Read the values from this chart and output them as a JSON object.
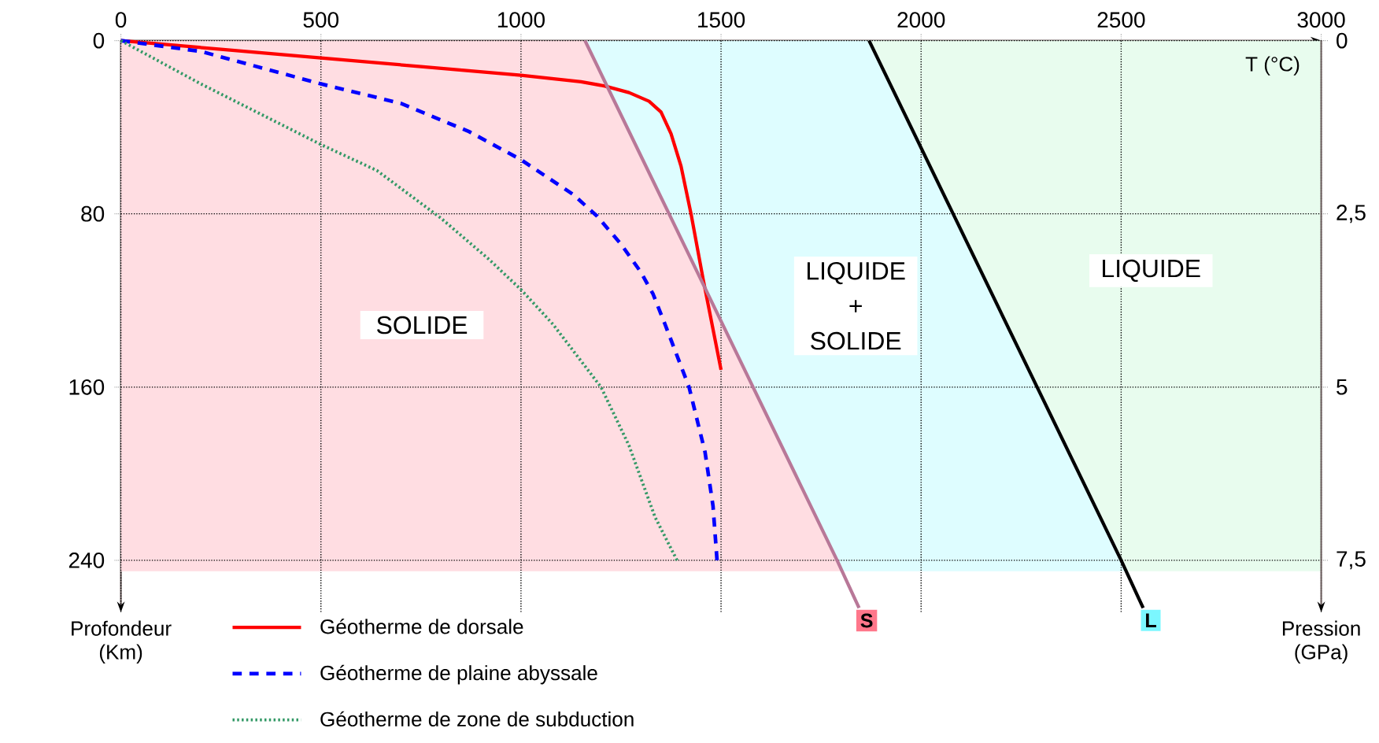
{
  "chart_data": {
    "type": "line",
    "xlabel": "T (°C)",
    "ylabel": "Profondeur (Km)",
    "y2label": "Pression (GPa)",
    "xlim": [
      0,
      3000
    ],
    "xticks": [
      0,
      500,
      1000,
      1500,
      2000,
      2500,
      3000
    ],
    "ylim": [
      264,
      0
    ],
    "yticks": [
      0,
      80,
      160,
      240
    ],
    "y2lim": [
      8.25,
      0
    ],
    "y2ticks": [
      0,
      {
        "value": 2.5,
        "label": "2,5"
      },
      5,
      {
        "value": 7.5,
        "label": "7,5"
      }
    ],
    "grid": true,
    "legend": "bottom left",
    "series": [
      {
        "name": "Géotherme de dorsale",
        "color": "#ff0000",
        "line_style": "solid",
        "x": [
          0,
          250,
          500,
          750,
          1000,
          1150,
          1210,
          1270,
          1320,
          1350,
          1375,
          1400,
          1425,
          1455,
          1500
        ],
        "values": [
          0,
          4,
          8,
          12,
          16,
          19,
          21,
          24,
          28,
          33,
          43,
          58,
          80,
          110,
          152
        ]
      },
      {
        "name": "Géotherme de plaine abyssale",
        "color": "#0000ff",
        "line_style": "dashed",
        "x": [
          0,
          200,
          500,
          700,
          870,
          1000,
          1130,
          1190,
          1250,
          1300,
          1330,
          1360,
          1420,
          1460,
          1480,
          1490
        ],
        "values": [
          0,
          5,
          20,
          29,
          42,
          55,
          71,
          81,
          94,
          107,
          117,
          131,
          160,
          190,
          215,
          240
        ]
      },
      {
        "name": "Géotherme de zone de subduction",
        "color": "#339966",
        "line_style": "dotted",
        "x": [
          0,
          200,
          500,
          640,
          800,
          920,
          1000,
          1080,
          1200,
          1270,
          1335,
          1390
        ],
        "values": [
          0,
          20,
          48,
          60,
          82,
          101,
          115,
          131,
          160,
          187,
          220,
          240
        ]
      },
      {
        "color": "#b87898",
        "line_style": "solid",
        "x": [
          1160,
          1370,
          1580,
          1790,
          1845
        ],
        "values": [
          0,
          80,
          160,
          240,
          262
        ]
      },
      {
        "color": "#000000",
        "line_style": "solid",
        "x": [
          1870,
          2080,
          2290,
          2500,
          2555
        ],
        "values": [
          0,
          80,
          160,
          240,
          262
        ]
      },
      {
        "name": "SOLIDE",
        "type": "area",
        "color": "#ffdde2",
        "x": [
          0,
          1160,
          1370,
          1580,
          1790,
          1803,
          0
        ],
        "values": [
          0,
          0,
          80,
          160,
          240,
          245,
          245
        ]
      },
      {
        "name": "LIQUIDE + SOLIDE",
        "type": "area",
        "color": "#defdff",
        "x": [
          1160,
          1870,
          2080,
          2290,
          2500,
          2513,
          1803,
          1790,
          1580,
          1370
        ],
        "values": [
          0,
          0,
          80,
          160,
          240,
          245,
          245,
          240,
          160,
          80
        ]
      },
      {
        "name": "LIQUIDE",
        "type": "area",
        "color": "#e8fcee",
        "x": [
          1870,
          3000,
          3000,
          2513,
          2500,
          2290,
          2080
        ],
        "values": [
          0,
          0,
          245,
          245,
          240,
          160,
          80
        ]
      }
    ],
    "annotations": [
      {
        "text": "S",
        "x": 1845,
        "y": 262
      },
      {
        "text": "L",
        "x": 2555,
        "y": 262
      }
    ]
  }
}
